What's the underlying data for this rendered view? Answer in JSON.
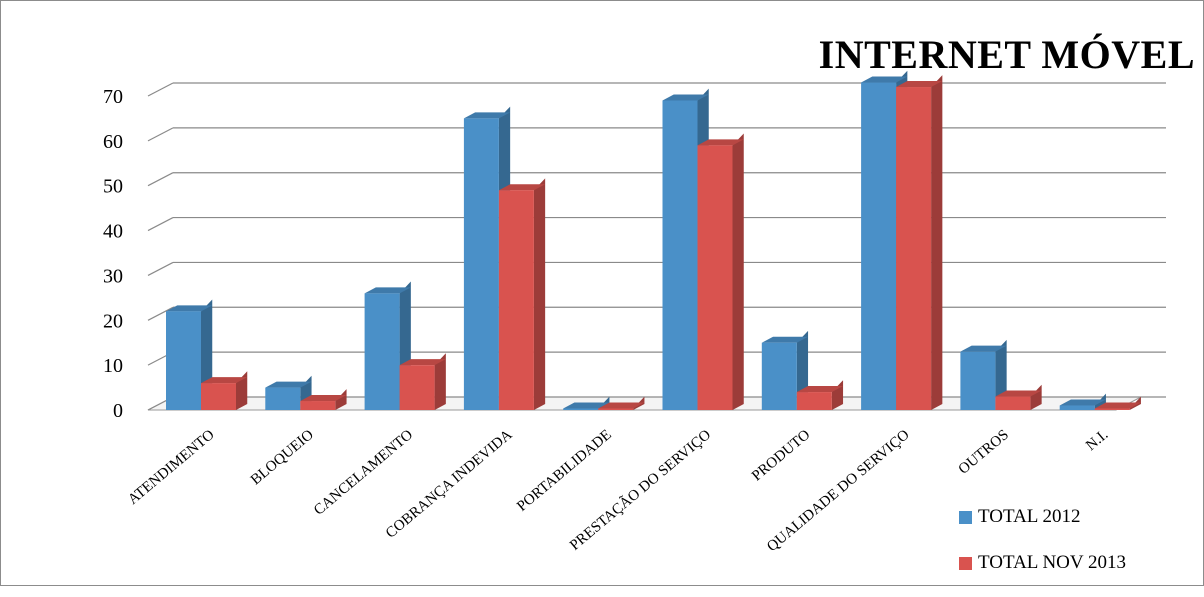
{
  "chart_data": {
    "type": "bar",
    "title": "INTERNET MÓVEL",
    "categories": [
      "ATENDIMENTO",
      "BLOQUEIO",
      "CANCELAMENTO",
      "COBRANÇA INDEVIDA",
      "PORTABILIDADE",
      "PRESTAÇÃO DO SERVIÇO",
      "PRODUTO",
      "QUALIDADE DO SERVIÇO",
      "OUTROS",
      "N.I."
    ],
    "series": [
      {
        "name": "TOTAL 2012",
        "color": "#4a90c8",
        "values": [
          22,
          5,
          26,
          65,
          0,
          69,
          15,
          73,
          13,
          1
        ]
      },
      {
        "name": "TOTAL NOV 2013",
        "color": "#d9534f",
        "values": [
          6,
          2,
          10,
          49,
          0,
          59,
          4,
          72,
          3,
          0
        ]
      }
    ],
    "y_ticks": [
      "0",
      "10",
      "20",
      "30",
      "40",
      "50",
      "60",
      "70"
    ],
    "ylim": [
      0,
      70
    ],
    "grid": true,
    "three_d": true,
    "legend_position": "bottom-right"
  }
}
